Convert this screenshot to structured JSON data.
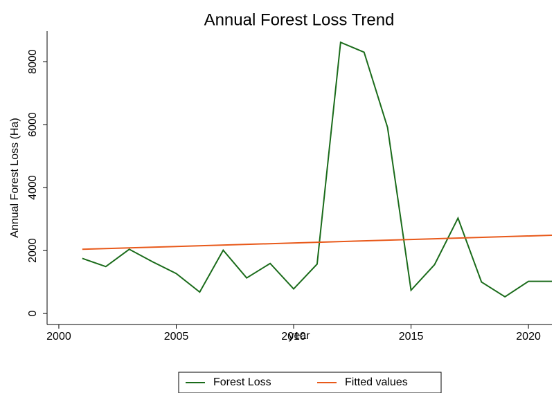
{
  "chart_data": {
    "type": "line",
    "title": "Annual Forest Loss Trend",
    "xlabel": "year",
    "ylabel": "Annual Forest Loss (Ha)",
    "xlim": [
      1999.5,
      2021
    ],
    "xticks": [
      2000,
      2005,
      2010,
      2015,
      2020
    ],
    "ylim": [
      -350,
      8970
    ],
    "yticks": [
      0,
      2000,
      4000,
      6000,
      8000
    ],
    "legend": "bottom",
    "series": [
      {
        "name": "Forest Loss",
        "color": "#1a6b1a",
        "x": [
          2001,
          2002,
          2003,
          2004,
          2005,
          2006,
          2007,
          2008,
          2009,
          2010,
          2011,
          2012,
          2013,
          2014,
          2015,
          2016,
          2017,
          2018,
          2019,
          2020,
          2021
        ],
        "values": [
          1750,
          1490,
          2040,
          1640,
          1270,
          680,
          2010,
          1130,
          1590,
          780,
          1570,
          8615,
          8300,
          5910,
          740,
          1550,
          3030,
          1000,
          530,
          1020,
          1020
        ]
      },
      {
        "name": "Fitted values",
        "color": "#e8591a",
        "x": [
          2001,
          2021
        ],
        "values": [
          2040,
          2485
        ]
      }
    ]
  }
}
